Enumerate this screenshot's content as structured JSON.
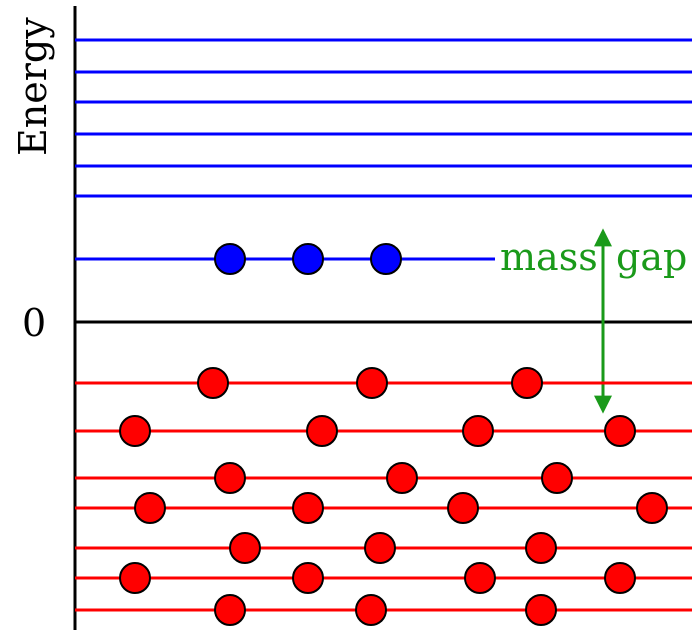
{
  "diagram": {
    "axis_label": "Energy",
    "zero_label": "0",
    "annotation_left": "mass",
    "annotation_right": "gap",
    "colors": {
      "axis": "#000000",
      "upper_levels": "#0000ff",
      "lower_levels": "#ff0000",
      "annotation": "#1a9a1a"
    },
    "upper_level_count": 6,
    "occupied_upper_level": {
      "particle_count": 3,
      "particle_color": "#0000ff"
    },
    "lower_levels": [
      {
        "particles": 3
      },
      {
        "particles": 4
      },
      {
        "particles": 3
      },
      {
        "particles": 4
      },
      {
        "particles": 3
      },
      {
        "particles": 4
      },
      {
        "particles": 3
      }
    ]
  }
}
